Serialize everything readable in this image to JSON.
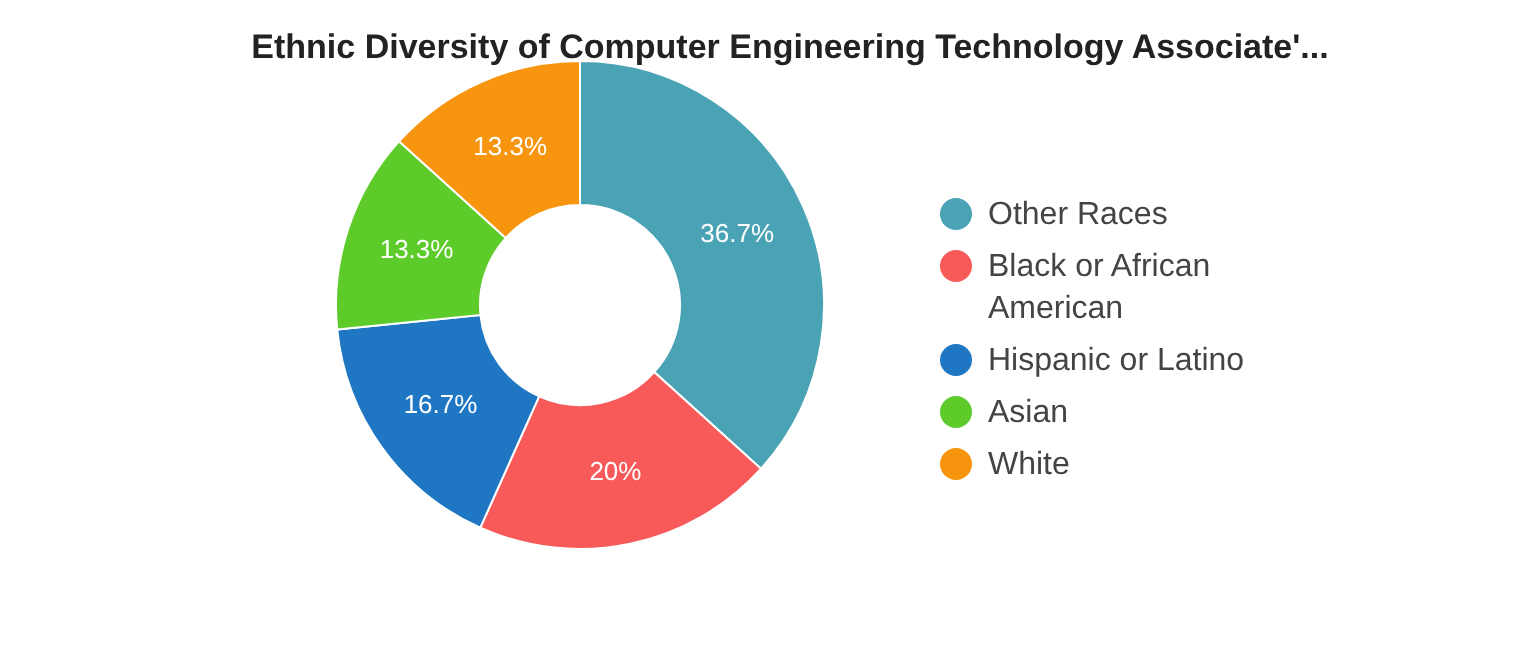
{
  "chart_data": {
    "type": "donut",
    "title": "Ethnic Diversity of Computer Engineering Technology Associate'...",
    "categories": [
      "Other Races",
      "Black or African American",
      "Hispanic or Latino",
      "Asian",
      "White"
    ],
    "values": [
      36.7,
      20,
      16.7,
      13.3,
      13.3
    ],
    "colors": [
      "#4aa3b5",
      "#f85a5a",
      "#1f77c4",
      "#5dcc2b",
      "#f7950f"
    ],
    "value_labels": [
      "36.7%",
      "20%",
      "16.7%",
      "13.3%",
      "13.3%"
    ],
    "legend": "right"
  }
}
